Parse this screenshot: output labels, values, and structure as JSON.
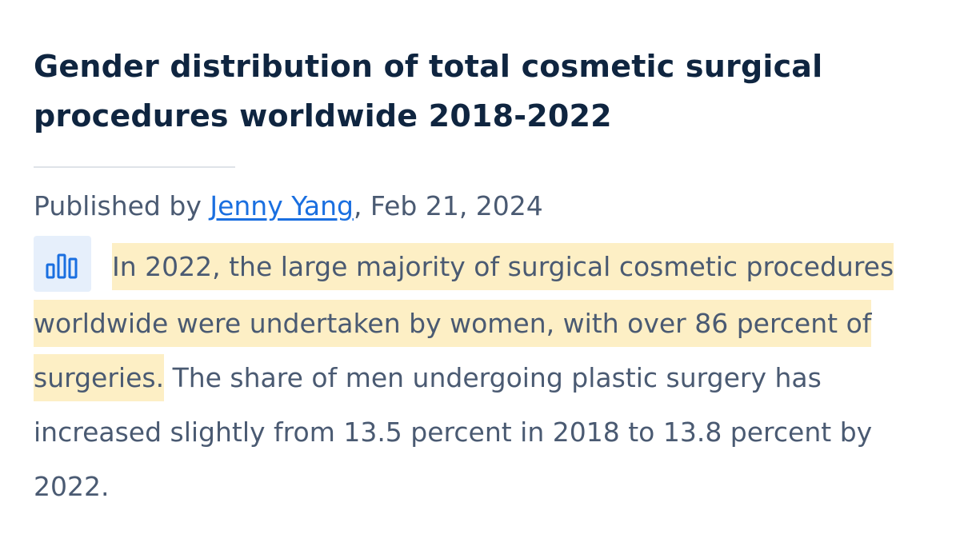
{
  "article": {
    "title": "Gender distribution of total cosmetic surgical procedures worldwide 2018-2022",
    "byline": {
      "prefix": "Published by ",
      "author": "Jenny Yang",
      "suffix": ", Feb 21, 2024"
    },
    "summary": {
      "icon": "bar-chart-icon",
      "highlighted": "In 2022, the large majority of surgical cosmetic procedures worldwide were undertaken by women, with over 86 percent of surgeries.",
      "rest": " The share of men undergoing plastic surgery has increased slightly from 13.5 percent in 2018 to 13.8 percent by 2022."
    }
  },
  "colors": {
    "title": "#0f2540",
    "body_text": "#4a5a72",
    "link": "#1a6fe0",
    "highlight": "#fdefc5",
    "icon_bg": "#e6effb",
    "icon_stroke": "#1a6fe0"
  }
}
